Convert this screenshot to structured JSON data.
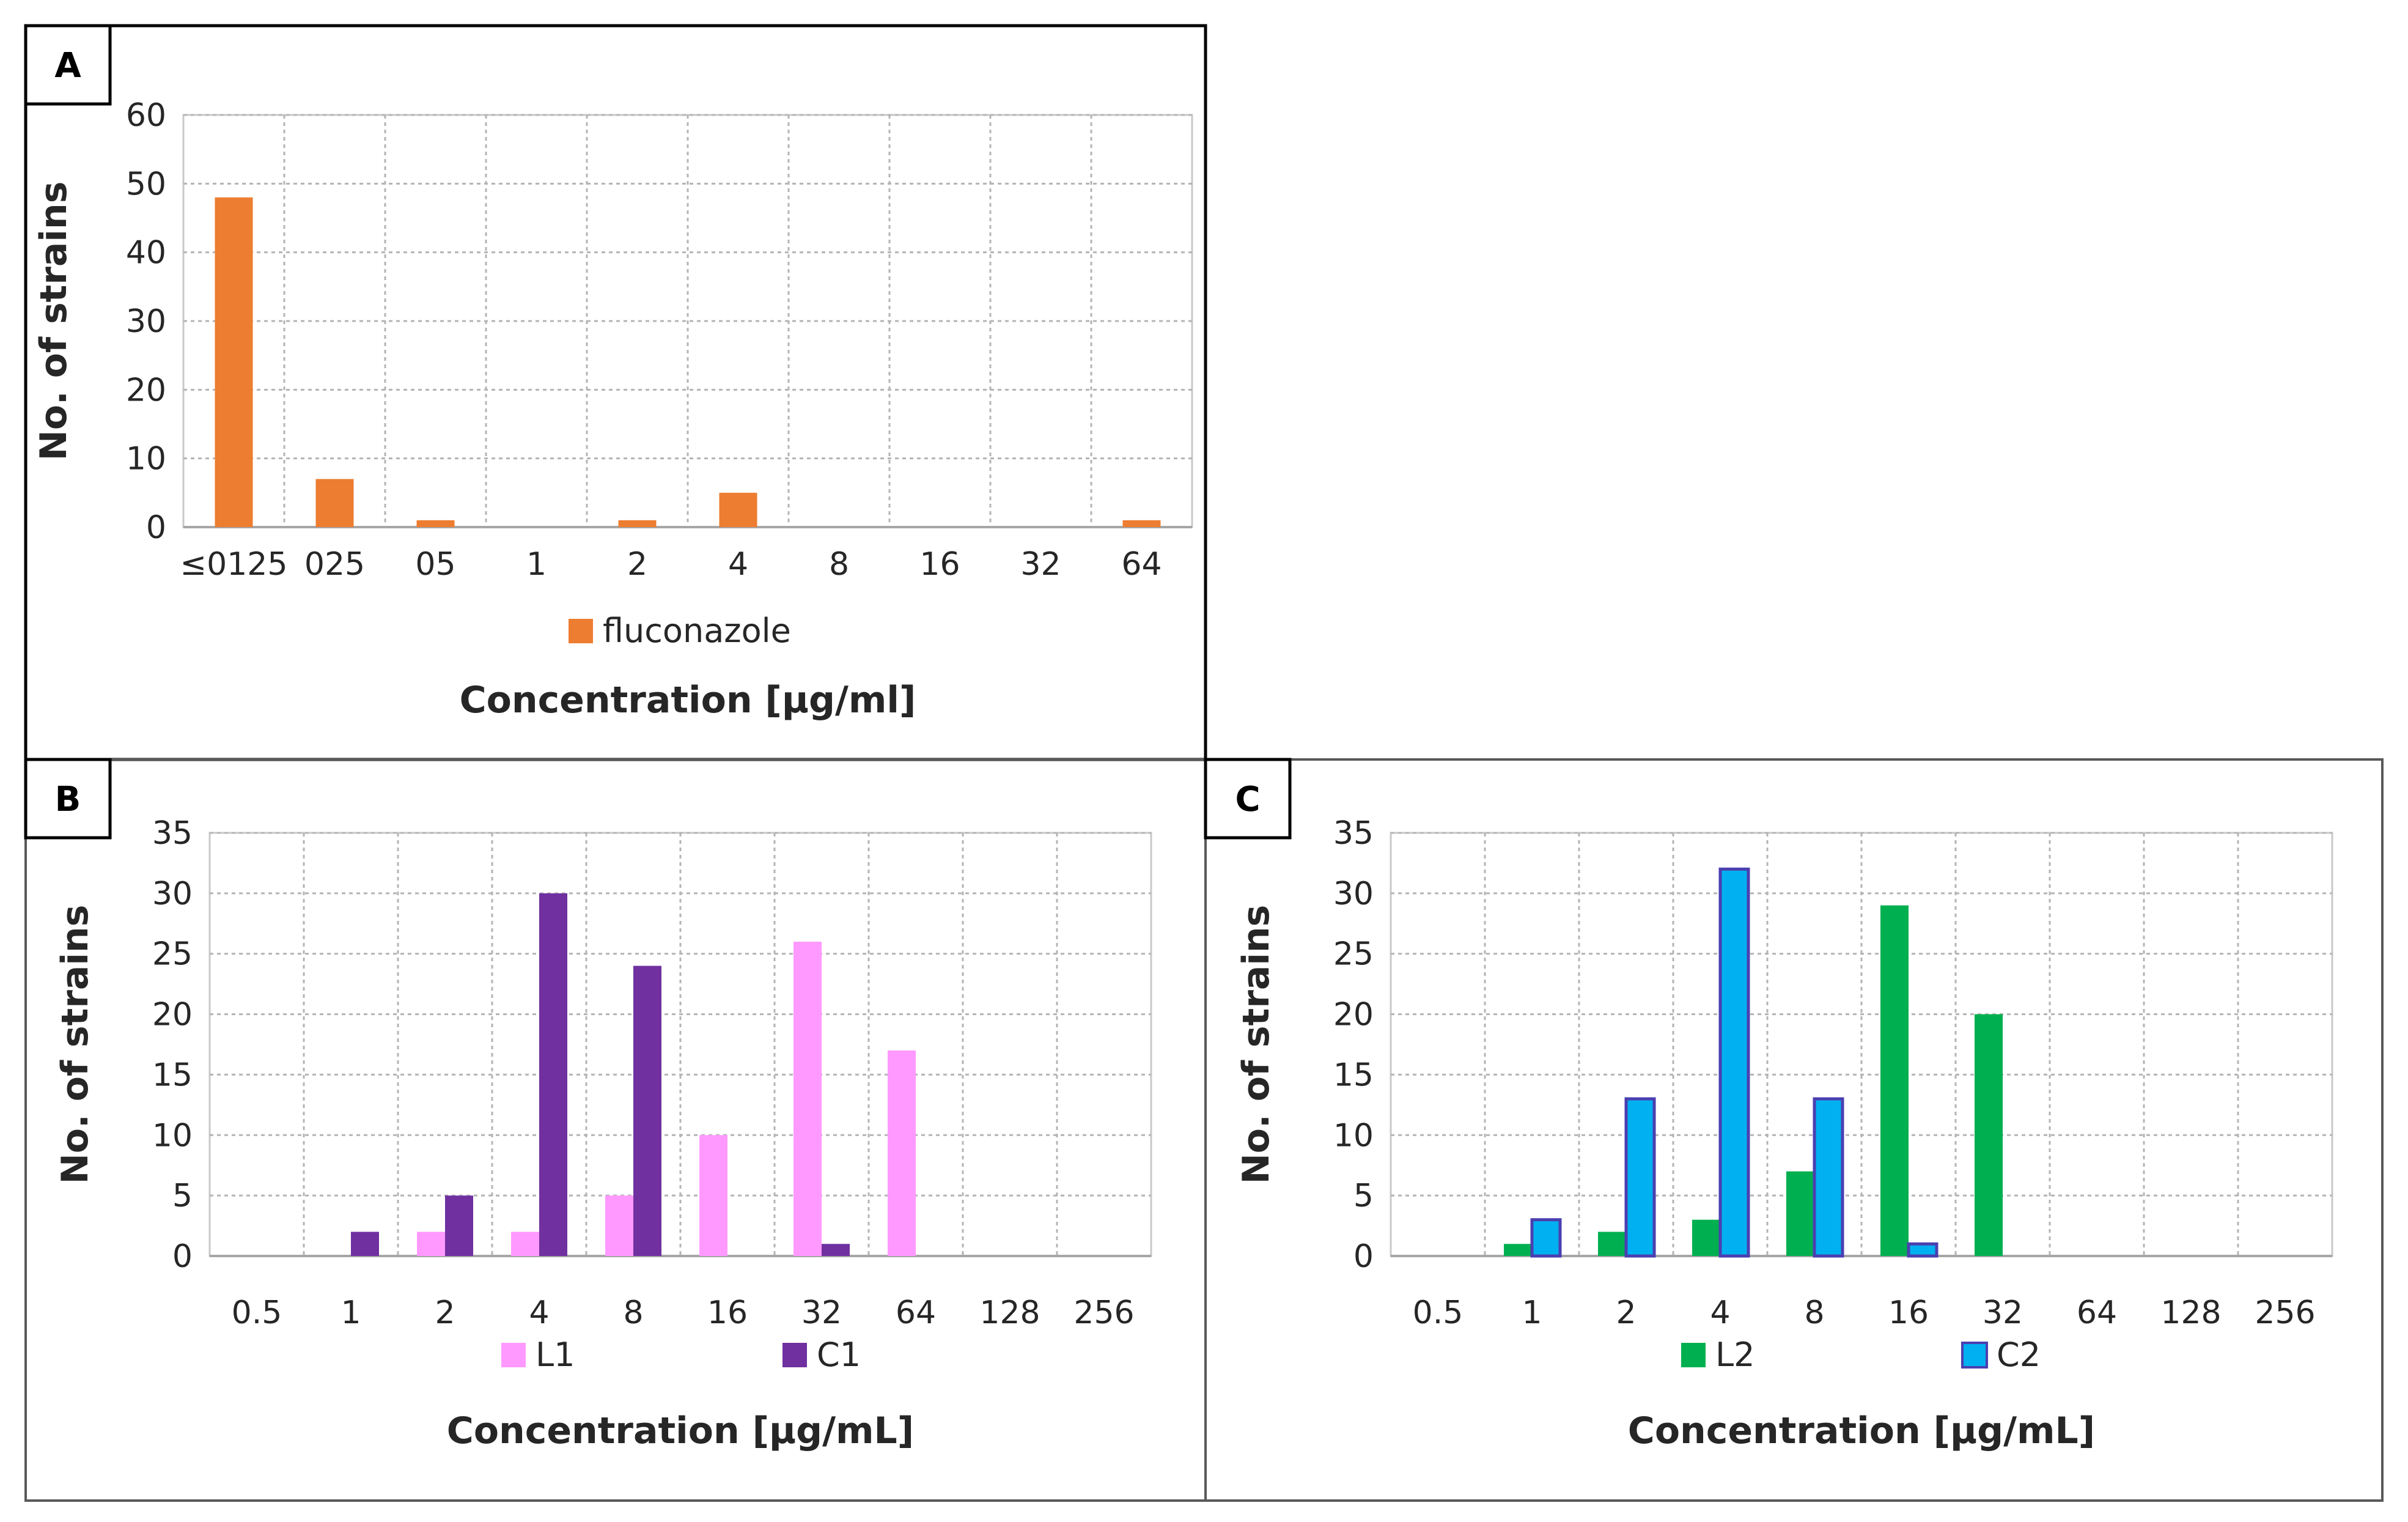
{
  "chart_data": [
    {
      "type": "bar",
      "panel_label": "A",
      "categories": [
        "≤0125",
        "025",
        "05",
        "1",
        "2",
        "4",
        "8",
        "16",
        "32",
        "64"
      ],
      "series": [
        {
          "name": "fluconazole",
          "color": "#ED7D31",
          "values": [
            48,
            7,
            1,
            0,
            1,
            5,
            0,
            0,
            0,
            1
          ]
        }
      ],
      "yticks": [
        0,
        10,
        20,
        30,
        40,
        50,
        60
      ],
      "ylim": [
        0,
        60
      ],
      "xlabel": "Concentration [µg/ml]",
      "ylabel": "No. of strains",
      "grid": true,
      "legend": "bottom"
    },
    {
      "type": "bar",
      "panel_label": "B",
      "categories": [
        "0.5",
        "1",
        "2",
        "4",
        "8",
        "16",
        "32",
        "64",
        "128",
        "256"
      ],
      "series": [
        {
          "name": "L1",
          "color": "#FF99FF",
          "values": [
            0,
            0,
            2,
            2,
            5,
            10,
            26,
            17,
            0,
            0
          ]
        },
        {
          "name": "C1",
          "color": "#7030A0",
          "values": [
            0,
            2,
            5,
            30,
            24,
            0,
            1,
            0,
            0,
            0
          ]
        }
      ],
      "yticks": [
        0,
        5,
        10,
        15,
        20,
        25,
        30,
        35
      ],
      "ylim": [
        0,
        35
      ],
      "xlabel": "Concentration [µg/mL]",
      "ylabel": "No. of strains",
      "grid": true,
      "legend": "bottom"
    },
    {
      "type": "bar",
      "panel_label": "C",
      "categories": [
        "0.5",
        "1",
        "2",
        "4",
        "8",
        "16",
        "32",
        "64",
        "128",
        "256"
      ],
      "series": [
        {
          "name": "L2",
          "color": "#00B050",
          "values": [
            0,
            1,
            2,
            3,
            7,
            29,
            20,
            0,
            0,
            0
          ]
        },
        {
          "name": "C2",
          "color": "#00B0F0",
          "values": [
            0,
            3,
            13,
            32,
            13,
            1,
            0,
            0,
            0,
            0
          ]
        }
      ],
      "yticks": [
        0,
        5,
        10,
        15,
        20,
        25,
        30,
        35
      ],
      "ylim": [
        0,
        35
      ],
      "xlabel": "Concentration [µg/mL]",
      "ylabel": "No. of strains",
      "grid": true,
      "legend": "bottom"
    }
  ]
}
